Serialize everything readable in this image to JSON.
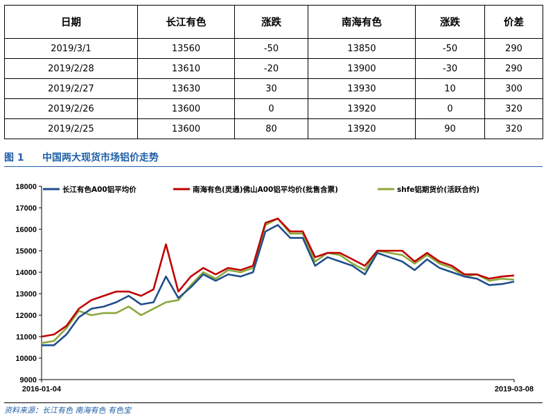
{
  "table": {
    "headers": [
      "日期",
      "长江有色",
      "涨跌",
      "南海有色",
      "涨跌",
      "价差"
    ],
    "rows": [
      [
        "2019/3/1",
        "13560",
        "-50",
        "13850",
        "-50",
        "290"
      ],
      [
        "2019/2/28",
        "13610",
        "-20",
        "13900",
        "-30",
        "290"
      ],
      [
        "2019/2/27",
        "13630",
        "30",
        "13930",
        "10",
        "300"
      ],
      [
        "2019/2/26",
        "13600",
        "0",
        "13920",
        "0",
        "320"
      ],
      [
        "2019/2/25",
        "13600",
        "80",
        "13920",
        "90",
        "320"
      ]
    ]
  },
  "figure": {
    "number": "图 1",
    "title": "中国两大现货市场铝价走势"
  },
  "source": "资料来源：长江有色    南海有色    有色宝",
  "chart_data": {
    "type": "line",
    "title": "",
    "xlabel": "",
    "ylabel": "",
    "x_tick_labels": [
      "2016-01-04",
      "2019-03-08"
    ],
    "ylim": [
      9000,
      18000
    ],
    "yticks": [
      9000,
      10000,
      11000,
      12000,
      13000,
      14000,
      15000,
      16000,
      17000,
      18000
    ],
    "ytick_labels": [
      "9000",
      "10000",
      "11000",
      "12000",
      "13000",
      "14000",
      "15000",
      "16000",
      "17000",
      "18000"
    ],
    "grid": false,
    "legend_position": "top",
    "x": [
      "2016-01",
      "2016-02",
      "2016-03",
      "2016-04",
      "2016-05",
      "2016-06",
      "2016-07",
      "2016-08",
      "2016-09",
      "2016-10",
      "2016-11",
      "2016-12",
      "2017-01",
      "2017-02",
      "2017-03",
      "2017-04",
      "2017-05",
      "2017-06",
      "2017-07",
      "2017-08",
      "2017-09",
      "2017-10",
      "2017-11",
      "2017-12",
      "2018-01",
      "2018-02",
      "2018-03",
      "2018-04",
      "2018-05",
      "2018-06",
      "2018-07",
      "2018-08",
      "2018-09",
      "2018-10",
      "2018-11",
      "2018-12",
      "2019-01",
      "2019-02",
      "2019-03"
    ],
    "series": [
      {
        "name": "长江有色A00铝平均价",
        "color": "#1f4e8c",
        "values": [
          10600,
          10600,
          11100,
          11900,
          12300,
          12400,
          12600,
          12900,
          12500,
          12600,
          13800,
          12800,
          13300,
          13900,
          13600,
          13900,
          13800,
          14000,
          15900,
          16200,
          15600,
          15600,
          14300,
          14700,
          14500,
          14300,
          13900,
          14900,
          14700,
          14500,
          14100,
          14600,
          14200,
          14000,
          13800,
          13700,
          13400,
          13450,
          13560
        ]
      },
      {
        "name": "南海有色(灵通)佛山A00铝平均价(批售含票)",
        "color": "#c00000",
        "values": [
          11000,
          11100,
          11500,
          12300,
          12700,
          12900,
          13100,
          13100,
          12900,
          13200,
          15300,
          13100,
          13800,
          14200,
          13900,
          14200,
          14100,
          14300,
          16300,
          16500,
          15900,
          15900,
          14700,
          14900,
          14900,
          14600,
          14300,
          15000,
          15000,
          15000,
          14500,
          14900,
          14500,
          14300,
          13900,
          13900,
          13700,
          13800,
          13850
        ]
      },
      {
        "name": "shfe铝期货价(活跃合约)",
        "color": "#8aa83c",
        "values": [
          10700,
          10800,
          11400,
          12200,
          12000,
          12100,
          12100,
          12400,
          12000,
          12300,
          12600,
          12700,
          13400,
          14000,
          13700,
          14100,
          14000,
          14200,
          16200,
          16500,
          15800,
          15800,
          14500,
          14900,
          14800,
          14400,
          14100,
          15000,
          14900,
          14800,
          14400,
          14800,
          14400,
          14200,
          13800,
          13900,
          13600,
          13700,
          13650
        ]
      }
    ]
  }
}
